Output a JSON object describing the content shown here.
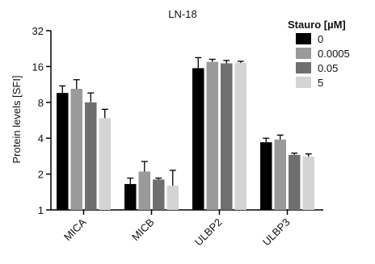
{
  "chart_data": {
    "type": "bar",
    "title": "LN-18",
    "ylabel": "Protein levels [SFI]",
    "xlabel": "",
    "yscale": "log2",
    "ylim": [
      1,
      32
    ],
    "yticks": [
      1,
      2,
      4,
      8,
      16,
      32
    ],
    "ytick_labels": [
      "1",
      "2",
      "4",
      "8",
      "16",
      "32"
    ],
    "categories": [
      "MICA",
      "MICB",
      "ULBP2",
      "ULBP3"
    ],
    "legend": {
      "title": "Stauro [µM]",
      "placement": "top-right"
    },
    "error_bars": true,
    "series": [
      {
        "name": "0",
        "color": "#000000",
        "values": [
          9.6,
          1.65,
          15.5,
          3.7
        ],
        "errors": [
          1.4,
          0.2,
          3.5,
          0.3
        ]
      },
      {
        "name": "0.0005",
        "color": "#9a9a9a",
        "values": [
          10.4,
          2.1,
          17.5,
          3.9
        ],
        "errors": [
          2.0,
          0.45,
          0.9,
          0.35
        ]
      },
      {
        "name": "0.05",
        "color": "#6f6f6f",
        "values": [
          8.0,
          1.8,
          17.0,
          2.9
        ],
        "errors": [
          1.6,
          0.05,
          1.0,
          0.1
        ]
      },
      {
        "name": "5",
        "color": "#d4d4d4",
        "values": [
          5.9,
          1.6,
          17.2,
          2.8
        ],
        "errors": [
          1.1,
          0.55,
          0.5,
          0.15
        ]
      }
    ]
  }
}
